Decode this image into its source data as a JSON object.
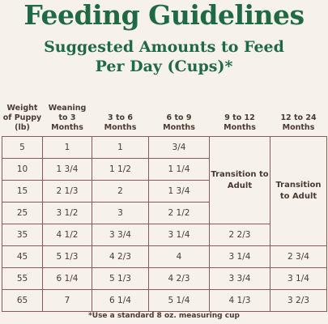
{
  "title": "Feeding Guidelines",
  "subtitle_line1": "Suggested Amounts to Feed",
  "subtitle_line2": "Per Day (Cups)*",
  "headers": {
    "weight": "Weight of Puppy (lb)",
    "weaning": "Weaning to 3 Months",
    "m3_6": "3 to 6 Months",
    "m6_9": "6 to 9 Months",
    "m9_12": "9 to 12 Months",
    "m12_24": "12 to 24 Months"
  },
  "transition_label": "Transition to Adult",
  "rows": [
    {
      "weight": "5",
      "weaning": "1",
      "m3_6": "1",
      "m6_9": "3/4",
      "m9_12": "",
      "m12_24": ""
    },
    {
      "weight": "10",
      "weaning": "1 3/4",
      "m3_6": "1 1/2",
      "m6_9": "1 1/4",
      "m9_12": "",
      "m12_24": ""
    },
    {
      "weight": "15",
      "weaning": "2 1/3",
      "m3_6": "2",
      "m6_9": "1 3/4",
      "m9_12": "",
      "m12_24": ""
    },
    {
      "weight": "25",
      "weaning": "3 1/2",
      "m3_6": "3",
      "m6_9": "2 1/2",
      "m9_12": "",
      "m12_24": ""
    },
    {
      "weight": "35",
      "weaning": "4 1/2",
      "m3_6": "3 3/4",
      "m6_9": "3 1/4",
      "m9_12": "2 2/3",
      "m12_24": ""
    },
    {
      "weight": "45",
      "weaning": "5 1/3",
      "m3_6": "4 2/3",
      "m6_9": "4",
      "m9_12": "3 1/4",
      "m12_24": "2 3/4"
    },
    {
      "weight": "55",
      "weaning": "6 1/4",
      "m3_6": "5 1/3",
      "m6_9": "4 2/3",
      "m9_12": "3 3/4",
      "m12_24": "3 1/4"
    },
    {
      "weight": "65",
      "weaning": "7",
      "m3_6": "6 1/4",
      "m6_9": "5 1/4",
      "m9_12": "4 1/3",
      "m12_24": "3 2/3"
    }
  ],
  "footnote": "*Use a standard 8 oz. measuring cup",
  "colors": {
    "title": "#1f6a45",
    "text": "#4a3a32",
    "border": "#8a5a5a",
    "background": "#f6f1ea"
  }
}
